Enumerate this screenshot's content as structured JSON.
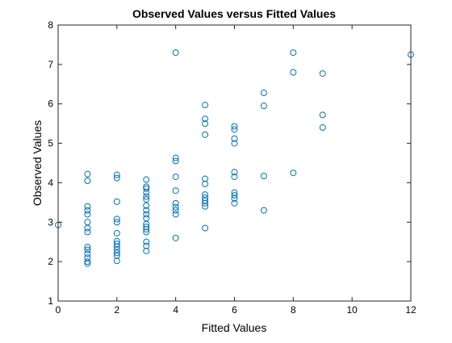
{
  "chart_data": {
    "type": "scatter",
    "title": "Observed Values versus Fitted Values",
    "xlabel": "Fitted Values",
    "ylabel": "Observed Values",
    "xlim": [
      0,
      12
    ],
    "ylim": [
      1,
      8
    ],
    "xticks": [
      0,
      2,
      4,
      6,
      8,
      10,
      12
    ],
    "yticks": [
      1,
      2,
      3,
      4,
      5,
      6,
      7,
      8
    ],
    "grid": false,
    "marker": "open-circle",
    "marker_color": "#0072bd",
    "series": [
      {
        "points": [
          [
            0,
            2.93
          ],
          [
            1,
            4.22
          ],
          [
            1,
            4.05
          ],
          [
            1,
            3.4
          ],
          [
            1,
            3.3
          ],
          [
            1,
            3.2
          ],
          [
            1,
            3.0
          ],
          [
            1,
            2.85
          ],
          [
            1,
            2.75
          ],
          [
            1,
            2.37
          ],
          [
            1,
            2.3
          ],
          [
            1,
            2.2
          ],
          [
            1,
            2.1
          ],
          [
            1,
            2.0
          ],
          [
            1,
            1.95
          ],
          [
            2,
            4.2
          ],
          [
            2,
            4.12
          ],
          [
            2,
            3.52
          ],
          [
            2,
            3.08
          ],
          [
            2,
            3.0
          ],
          [
            2,
            2.72
          ],
          [
            2,
            2.52
          ],
          [
            2,
            2.45
          ],
          [
            2,
            2.38
          ],
          [
            2,
            2.3
          ],
          [
            2,
            2.22
          ],
          [
            2,
            2.15
          ],
          [
            2,
            2.02
          ],
          [
            3,
            4.08
          ],
          [
            3,
            3.9
          ],
          [
            3,
            3.85
          ],
          [
            3,
            3.75
          ],
          [
            3,
            3.65
          ],
          [
            3,
            3.58
          ],
          [
            3,
            3.42
          ],
          [
            3,
            3.3
          ],
          [
            3,
            3.2
          ],
          [
            3,
            3.1
          ],
          [
            3,
            2.95
          ],
          [
            3,
            2.88
          ],
          [
            3,
            2.82
          ],
          [
            3,
            2.75
          ],
          [
            3,
            2.5
          ],
          [
            3,
            2.4
          ],
          [
            3,
            2.27
          ],
          [
            4,
            7.3
          ],
          [
            4,
            4.63
          ],
          [
            4,
            4.55
          ],
          [
            4,
            4.15
          ],
          [
            4,
            3.8
          ],
          [
            4,
            3.48
          ],
          [
            4,
            3.38
          ],
          [
            4,
            3.3
          ],
          [
            4,
            3.2
          ],
          [
            4,
            2.6
          ],
          [
            5,
            5.97
          ],
          [
            5,
            5.62
          ],
          [
            5,
            5.5
          ],
          [
            5,
            5.22
          ],
          [
            5,
            4.1
          ],
          [
            5,
            3.97
          ],
          [
            5,
            3.7
          ],
          [
            5,
            3.62
          ],
          [
            5,
            3.55
          ],
          [
            5,
            3.48
          ],
          [
            5,
            3.4
          ],
          [
            5,
            2.85
          ],
          [
            6,
            5.43
          ],
          [
            6,
            5.35
          ],
          [
            6,
            5.12
          ],
          [
            6,
            5.0
          ],
          [
            6,
            4.27
          ],
          [
            6,
            4.15
          ],
          [
            6,
            3.75
          ],
          [
            6,
            3.68
          ],
          [
            6,
            3.6
          ],
          [
            6,
            3.48
          ],
          [
            7,
            6.28
          ],
          [
            7,
            5.95
          ],
          [
            7,
            4.17
          ],
          [
            7,
            3.3
          ],
          [
            8,
            7.3
          ],
          [
            8,
            6.8
          ],
          [
            8,
            4.25
          ],
          [
            9,
            6.77
          ],
          [
            9,
            5.72
          ],
          [
            9,
            5.4
          ],
          [
            12,
            7.25
          ]
        ]
      }
    ]
  }
}
